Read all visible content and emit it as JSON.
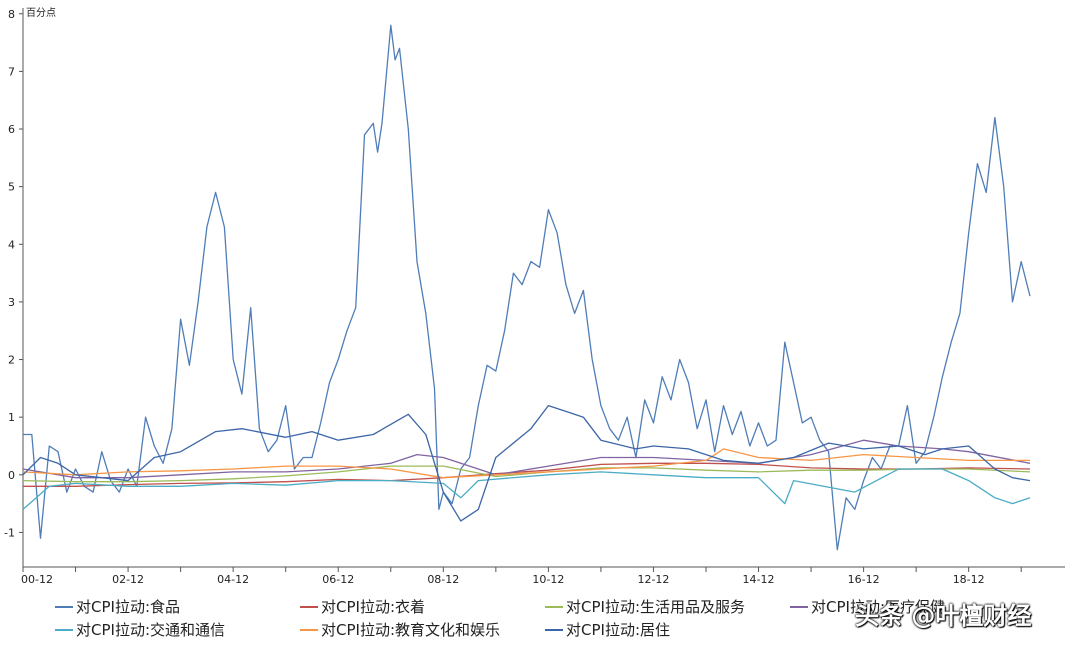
{
  "chart_data": {
    "type": "line",
    "unit_label": "百分点",
    "ylim": [
      -1.6,
      8.1
    ],
    "yticks": [
      8,
      7,
      6,
      5,
      4,
      3,
      2,
      1,
      0,
      -1
    ],
    "xlim": [
      0,
      238
    ],
    "xticks": [
      {
        "label": "00-12",
        "x": 0
      },
      {
        "label": "02-12",
        "x": 24
      },
      {
        "label": "04-12",
        "x": 48
      },
      {
        "label": "06-12",
        "x": 72
      },
      {
        "label": "08-12",
        "x": 96
      },
      {
        "label": "10-12",
        "x": 120
      },
      {
        "label": "12-12",
        "x": 144
      },
      {
        "label": "14-12",
        "x": 168
      },
      {
        "label": "16-12",
        "x": 192
      },
      {
        "label": "18-12",
        "x": 216
      }
    ],
    "series": [
      {
        "name": "对CPI拉动:食品",
        "color": "#4f7db8",
        "points": [
          [
            0,
            0.7
          ],
          [
            2,
            0.7
          ],
          [
            4,
            -1.1
          ],
          [
            6,
            0.5
          ],
          [
            8,
            0.4
          ],
          [
            10,
            -0.3
          ],
          [
            12,
            0.1
          ],
          [
            14,
            -0.2
          ],
          [
            16,
            -0.3
          ],
          [
            18,
            0.4
          ],
          [
            20,
            -0.1
          ],
          [
            22,
            -0.3
          ],
          [
            24,
            0.1
          ],
          [
            26,
            -0.2
          ],
          [
            28,
            1.0
          ],
          [
            30,
            0.5
          ],
          [
            32,
            0.2
          ],
          [
            34,
            0.8
          ],
          [
            36,
            2.7
          ],
          [
            38,
            1.9
          ],
          [
            40,
            3.0
          ],
          [
            42,
            4.3
          ],
          [
            44,
            4.9
          ],
          [
            46,
            4.3
          ],
          [
            48,
            2.0
          ],
          [
            50,
            1.4
          ],
          [
            52,
            2.9
          ],
          [
            54,
            0.8
          ],
          [
            56,
            0.4
          ],
          [
            58,
            0.6
          ],
          [
            60,
            1.2
          ],
          [
            62,
            0.1
          ],
          [
            64,
            0.3
          ],
          [
            66,
            0.3
          ],
          [
            68,
            0.9
          ],
          [
            70,
            1.6
          ],
          [
            72,
            2.0
          ],
          [
            74,
            2.5
          ],
          [
            76,
            2.9
          ],
          [
            78,
            5.9
          ],
          [
            80,
            6.1
          ],
          [
            81,
            5.6
          ],
          [
            82,
            6.1
          ],
          [
            84,
            7.8
          ],
          [
            85,
            7.2
          ],
          [
            86,
            7.4
          ],
          [
            88,
            6.0
          ],
          [
            90,
            3.7
          ],
          [
            92,
            2.8
          ],
          [
            94,
            1.5
          ],
          [
            95,
            -0.6
          ],
          [
            96,
            -0.3
          ],
          [
            98,
            -0.5
          ],
          [
            100,
            0.1
          ],
          [
            102,
            0.3
          ],
          [
            104,
            1.2
          ],
          [
            106,
            1.9
          ],
          [
            108,
            1.8
          ],
          [
            110,
            2.5
          ],
          [
            112,
            3.5
          ],
          [
            114,
            3.3
          ],
          [
            116,
            3.7
          ],
          [
            118,
            3.6
          ],
          [
            120,
            4.6
          ],
          [
            122,
            4.2
          ],
          [
            124,
            3.3
          ],
          [
            126,
            2.8
          ],
          [
            128,
            3.2
          ],
          [
            130,
            2.0
          ],
          [
            132,
            1.2
          ],
          [
            134,
            0.8
          ],
          [
            136,
            0.6
          ],
          [
            138,
            1.0
          ],
          [
            140,
            0.3
          ],
          [
            142,
            1.3
          ],
          [
            144,
            0.9
          ],
          [
            146,
            1.7
          ],
          [
            148,
            1.3
          ],
          [
            150,
            2.0
          ],
          [
            152,
            1.6
          ],
          [
            154,
            0.8
          ],
          [
            156,
            1.3
          ],
          [
            158,
            0.4
          ],
          [
            160,
            1.2
          ],
          [
            162,
            0.7
          ],
          [
            164,
            1.1
          ],
          [
            166,
            0.5
          ],
          [
            168,
            0.9
          ],
          [
            170,
            0.5
          ],
          [
            172,
            0.6
          ],
          [
            174,
            2.3
          ],
          [
            176,
            1.6
          ],
          [
            178,
            0.9
          ],
          [
            180,
            1.0
          ],
          [
            182,
            0.6
          ],
          [
            184,
            0.4
          ],
          [
            186,
            -1.3
          ],
          [
            188,
            -0.4
          ],
          [
            190,
            -0.6
          ],
          [
            192,
            -0.1
          ],
          [
            194,
            0.3
          ],
          [
            196,
            0.1
          ],
          [
            198,
            0.5
          ],
          [
            200,
            0.5
          ],
          [
            202,
            1.2
          ],
          [
            204,
            0.2
          ],
          [
            206,
            0.4
          ],
          [
            208,
            1.0
          ],
          [
            210,
            1.7
          ],
          [
            212,
            2.3
          ],
          [
            214,
            2.8
          ],
          [
            216,
            4.2
          ],
          [
            218,
            5.4
          ],
          [
            220,
            4.9
          ],
          [
            222,
            6.2
          ],
          [
            224,
            5.0
          ],
          [
            226,
            3.0
          ],
          [
            228,
            3.7
          ],
          [
            230,
            3.1
          ]
        ]
      },
      {
        "name": "对CPI拉动:衣着",
        "color": "#c0504d",
        "points": [
          [
            0,
            -0.2
          ],
          [
            12,
            -0.2
          ],
          [
            24,
            -0.17
          ],
          [
            36,
            -0.15
          ],
          [
            48,
            -0.14
          ],
          [
            60,
            -0.12
          ],
          [
            72,
            -0.08
          ],
          [
            84,
            -0.1
          ],
          [
            96,
            -0.05
          ],
          [
            108,
            0.02
          ],
          [
            120,
            0.08
          ],
          [
            132,
            0.18
          ],
          [
            144,
            0.2
          ],
          [
            156,
            0.2
          ],
          [
            168,
            0.18
          ],
          [
            180,
            0.12
          ],
          [
            192,
            0.1
          ],
          [
            204,
            0.1
          ],
          [
            216,
            0.12
          ],
          [
            230,
            0.1
          ]
        ]
      },
      {
        "name": "对CPI拉动:生活用品及服务",
        "color": "#9bbb59",
        "points": [
          [
            0,
            -0.1
          ],
          [
            12,
            -0.12
          ],
          [
            24,
            -0.12
          ],
          [
            36,
            -0.1
          ],
          [
            48,
            -0.07
          ],
          [
            60,
            -0.02
          ],
          [
            72,
            0.05
          ],
          [
            84,
            0.15
          ],
          [
            96,
            0.15
          ],
          [
            108,
            -0.03
          ],
          [
            120,
            0.05
          ],
          [
            132,
            0.12
          ],
          [
            144,
            0.12
          ],
          [
            156,
            0.08
          ],
          [
            168,
            0.05
          ],
          [
            180,
            0.08
          ],
          [
            192,
            0.08
          ],
          [
            204,
            0.1
          ],
          [
            216,
            0.1
          ],
          [
            230,
            0.05
          ]
        ]
      },
      {
        "name": "对CPI拉动:医疗保健",
        "color": "#8064a2",
        "points": [
          [
            0,
            0.1
          ],
          [
            12,
            -0.05
          ],
          [
            24,
            -0.05
          ],
          [
            36,
            0.0
          ],
          [
            48,
            0.05
          ],
          [
            60,
            0.05
          ],
          [
            72,
            0.1
          ],
          [
            84,
            0.2
          ],
          [
            90,
            0.35
          ],
          [
            96,
            0.3
          ],
          [
            108,
            0.0
          ],
          [
            120,
            0.15
          ],
          [
            132,
            0.3
          ],
          [
            144,
            0.3
          ],
          [
            156,
            0.25
          ],
          [
            168,
            0.2
          ],
          [
            180,
            0.35
          ],
          [
            192,
            0.6
          ],
          [
            200,
            0.5
          ],
          [
            210,
            0.45
          ],
          [
            216,
            0.4
          ],
          [
            230,
            0.2
          ]
        ]
      },
      {
        "name": "对CPI拉动:交通和通信",
        "color": "#4bacc6",
        "points": [
          [
            0,
            -0.6
          ],
          [
            6,
            -0.2
          ],
          [
            12,
            -0.15
          ],
          [
            24,
            -0.2
          ],
          [
            36,
            -0.2
          ],
          [
            48,
            -0.15
          ],
          [
            60,
            -0.18
          ],
          [
            72,
            -0.1
          ],
          [
            84,
            -0.1
          ],
          [
            96,
            -0.15
          ],
          [
            100,
            -0.4
          ],
          [
            104,
            -0.1
          ],
          [
            120,
            0.0
          ],
          [
            132,
            0.05
          ],
          [
            144,
            0.0
          ],
          [
            156,
            -0.05
          ],
          [
            168,
            -0.05
          ],
          [
            174,
            -0.5
          ],
          [
            176,
            -0.1
          ],
          [
            190,
            -0.3
          ],
          [
            200,
            0.1
          ],
          [
            210,
            0.1
          ],
          [
            216,
            -0.1
          ],
          [
            222,
            -0.4
          ],
          [
            226,
            -0.5
          ],
          [
            230,
            -0.4
          ]
        ]
      },
      {
        "name": "对CPI拉动:教育文化和娱乐",
        "color": "#f79646",
        "points": [
          [
            0,
            0.05
          ],
          [
            12,
            0.0
          ],
          [
            24,
            0.05
          ],
          [
            36,
            0.07
          ],
          [
            48,
            0.1
          ],
          [
            60,
            0.15
          ],
          [
            72,
            0.15
          ],
          [
            84,
            0.1
          ],
          [
            96,
            -0.05
          ],
          [
            108,
            0.0
          ],
          [
            120,
            0.05
          ],
          [
            132,
            0.1
          ],
          [
            144,
            0.15
          ],
          [
            156,
            0.25
          ],
          [
            160,
            0.45
          ],
          [
            168,
            0.3
          ],
          [
            180,
            0.25
          ],
          [
            192,
            0.35
          ],
          [
            204,
            0.3
          ],
          [
            216,
            0.25
          ],
          [
            230,
            0.25
          ]
        ]
      },
      {
        "name": "对CPI拉动:居住",
        "color": "#3d66a8",
        "points": [
          [
            0,
            0.0
          ],
          [
            4,
            0.3
          ],
          [
            8,
            0.2
          ],
          [
            12,
            0.0
          ],
          [
            24,
            -0.1
          ],
          [
            30,
            0.3
          ],
          [
            36,
            0.4
          ],
          [
            44,
            0.75
          ],
          [
            50,
            0.8
          ],
          [
            60,
            0.65
          ],
          [
            66,
            0.75
          ],
          [
            72,
            0.6
          ],
          [
            80,
            0.7
          ],
          [
            88,
            1.05
          ],
          [
            92,
            0.7
          ],
          [
            96,
            -0.3
          ],
          [
            100,
            -0.8
          ],
          [
            104,
            -0.6
          ],
          [
            108,
            0.3
          ],
          [
            116,
            0.8
          ],
          [
            120,
            1.2
          ],
          [
            124,
            1.1
          ],
          [
            128,
            1.0
          ],
          [
            132,
            0.6
          ],
          [
            140,
            0.45
          ],
          [
            144,
            0.5
          ],
          [
            152,
            0.45
          ],
          [
            156,
            0.35
          ],
          [
            160,
            0.25
          ],
          [
            168,
            0.2
          ],
          [
            176,
            0.3
          ],
          [
            184,
            0.55
          ],
          [
            192,
            0.45
          ],
          [
            200,
            0.5
          ],
          [
            206,
            0.35
          ],
          [
            210,
            0.45
          ],
          [
            216,
            0.5
          ],
          [
            222,
            0.1
          ],
          [
            226,
            -0.05
          ],
          [
            230,
            -0.1
          ]
        ]
      }
    ]
  },
  "legend": [
    {
      "label": "对CPI拉动:食品",
      "color": "#4f7db8"
    },
    {
      "label": "对CPI拉动:衣着",
      "color": "#c0504d"
    },
    {
      "label": "对CPI拉动:生活用品及服务",
      "color": "#9bbb59"
    },
    {
      "label": "对CPI拉动:医疗保健",
      "color": "#8064a2"
    },
    {
      "label": "对CPI拉动:交通和通信",
      "color": "#4bacc6"
    },
    {
      "label": "对CPI拉动:教育文化和娱乐",
      "color": "#f79646"
    },
    {
      "label": "对CPI拉动:居住",
      "color": "#3d66a8"
    }
  ],
  "watermark": "头条 @叶檀财经"
}
